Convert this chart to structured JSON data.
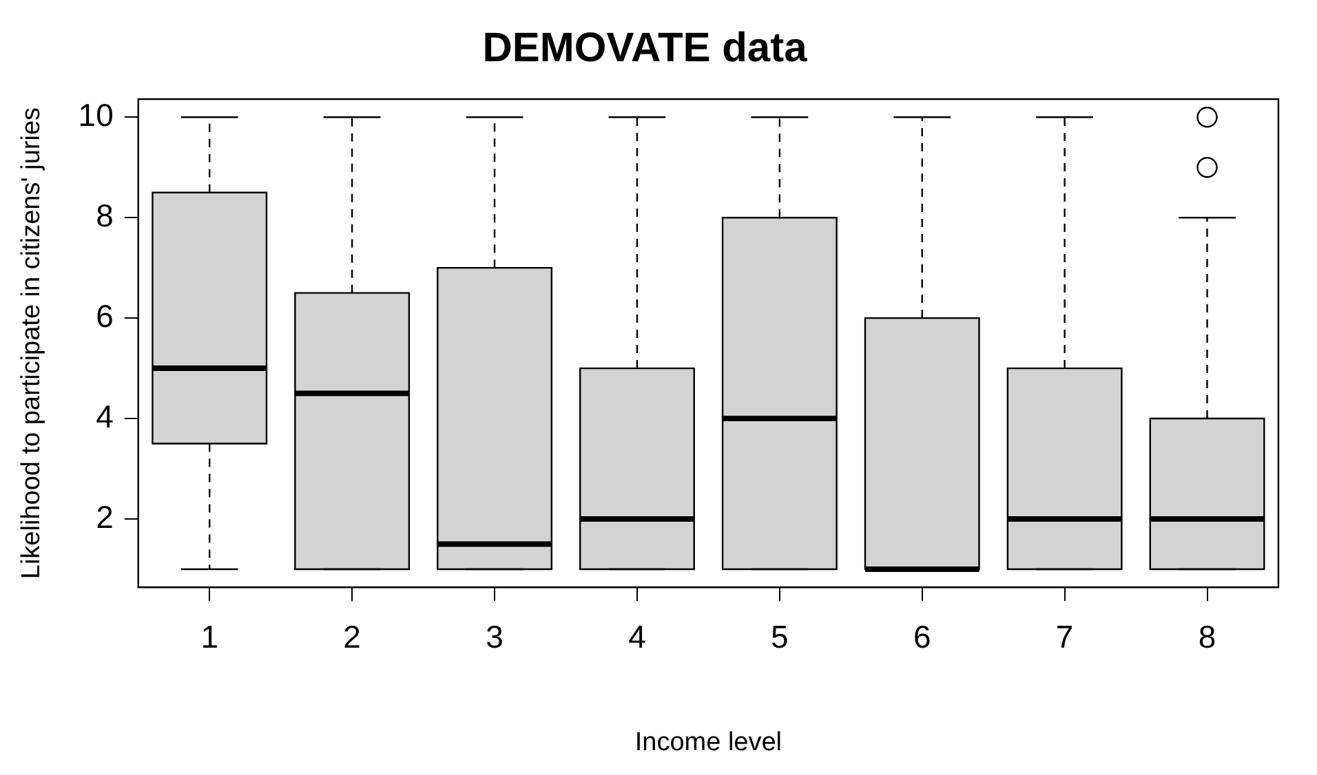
{
  "chart_data": {
    "type": "box",
    "title": "DEMOVATE data",
    "xlabel": "Income level",
    "ylabel": "Likelihood to participate in citizens' juries",
    "categories": [
      "1",
      "2",
      "3",
      "4",
      "5",
      "6",
      "7",
      "8"
    ],
    "color": "#d3d3d3",
    "boxes": [
      {
        "low": 1,
        "q1": 3.5,
        "median": 5,
        "q3": 8.5,
        "high": 10
      },
      {
        "low": 1,
        "q1": 1,
        "median": 4.5,
        "q3": 6.5,
        "high": 10
      },
      {
        "low": 1,
        "q1": 1,
        "median": 1.5,
        "q3": 7,
        "high": 10
      },
      {
        "low": 1,
        "q1": 1,
        "median": 2,
        "q3": 5,
        "high": 10
      },
      {
        "low": 1,
        "q1": 1,
        "median": 4,
        "q3": 8,
        "high": 10
      },
      {
        "low": 1,
        "q1": 1,
        "median": 1,
        "q3": 6,
        "high": 10
      },
      {
        "low": 1,
        "q1": 1,
        "median": 2,
        "q3": 5,
        "high": 10
      },
      {
        "low": 1,
        "q1": 1,
        "median": 2,
        "q3": 4,
        "high": 8,
        "outliers": [
          9,
          10
        ]
      }
    ],
    "ylim": [
      0.64,
      10.36
    ],
    "yticks": [
      2,
      4,
      6,
      8,
      10
    ]
  }
}
